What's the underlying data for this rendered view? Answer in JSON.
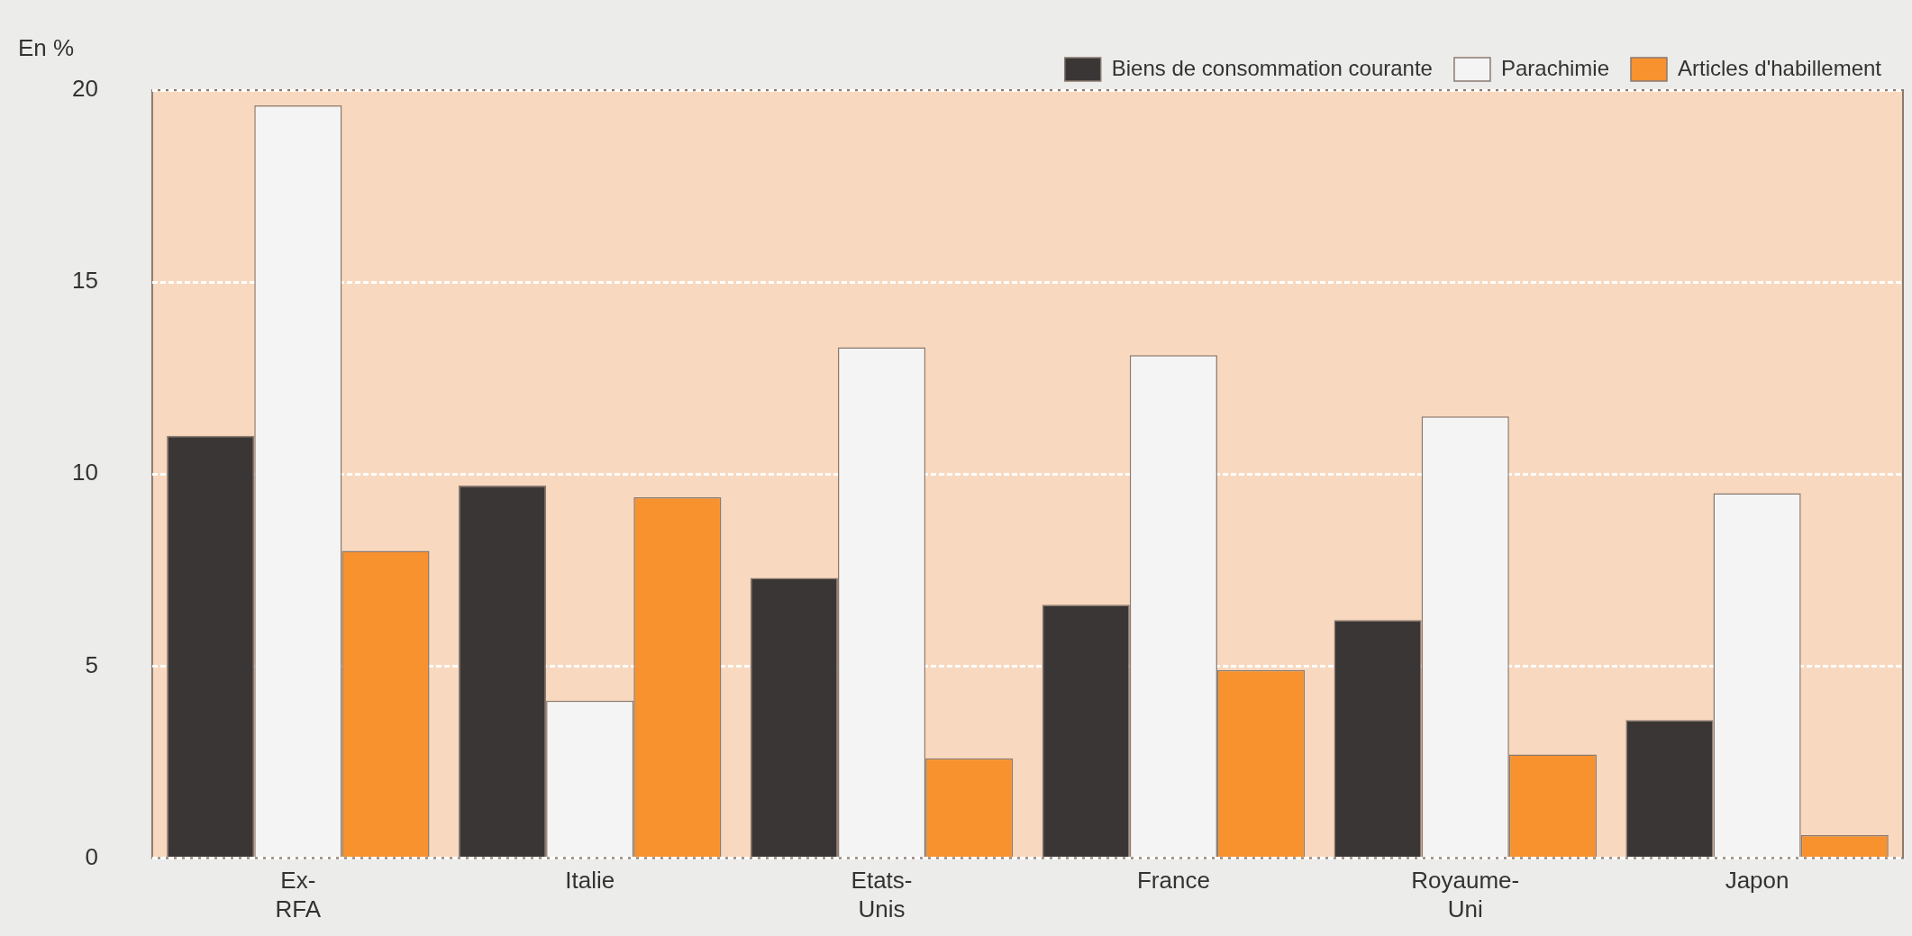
{
  "chart_data": {
    "type": "bar",
    "ylabel": "En %",
    "categories": [
      "Ex-RFA",
      "Italie",
      "Etats-Unis",
      "France",
      "Royaume-Uni",
      "Japon"
    ],
    "series": [
      {
        "name": "Biens de consommation courante",
        "color": "#3a3636",
        "values": [
          11.0,
          9.7,
          7.3,
          6.6,
          6.2,
          3.6
        ]
      },
      {
        "name": "Parachimie",
        "color": "#f4f4f4",
        "values": [
          19.6,
          4.1,
          13.3,
          13.1,
          11.5,
          9.5
        ]
      },
      {
        "name": "Articles d'habillement",
        "color": "#f7922e",
        "values": [
          8.0,
          9.4,
          2.6,
          4.9,
          2.7,
          0.6
        ]
      }
    ],
    "ylim": [
      0,
      20
    ],
    "yticks": [
      0,
      5,
      10,
      15,
      20
    ],
    "grid": "y",
    "legend": "top right"
  }
}
